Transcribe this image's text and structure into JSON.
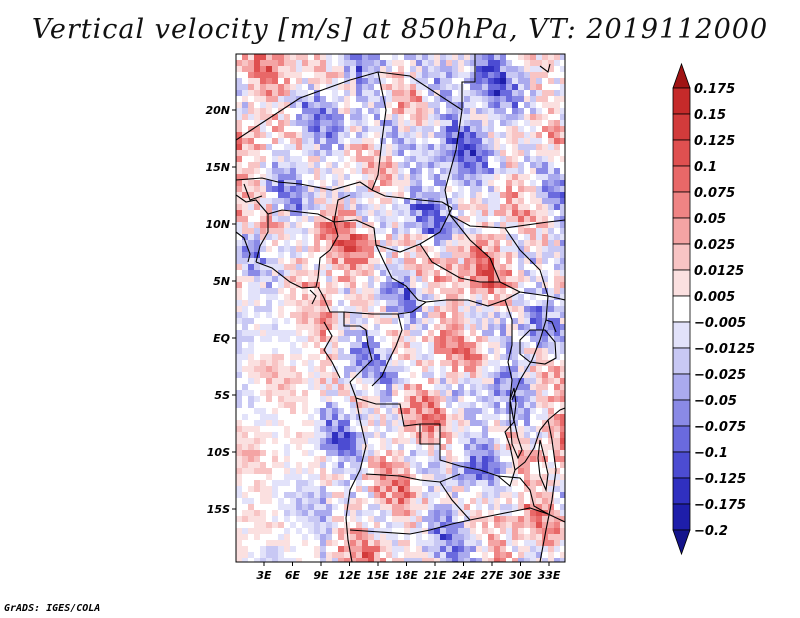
{
  "title": "Vertical velocity [m/s] at 850hPa, VT: 2019112000",
  "credit": "GrADS: IGES/COLA",
  "map": {
    "variable": "Vertical velocity",
    "units": "m/s",
    "level": "850hPa",
    "valid_time": "2019112000",
    "lon_ticks": [
      "3E",
      "6E",
      "9E",
      "12E",
      "15E",
      "18E",
      "21E",
      "24E",
      "27E",
      "30E",
      "33E"
    ],
    "lat_ticks": [
      "20N",
      "15N",
      "10N",
      "5N",
      "EQ",
      "5S",
      "10S",
      "15S"
    ]
  },
  "colorbar": {
    "levels": [
      "0.175",
      "0.15",
      "0.125",
      "0.1",
      "0.075",
      "0.05",
      "0.025",
      "0.0125",
      "0.005",
      "−0.005",
      "−0.0125",
      "−0.025",
      "−0.05",
      "−0.075",
      "−0.1",
      "−0.125",
      "−0.175",
      "−0.2"
    ],
    "colors": [
      "#b81c1c",
      "#c52a2a",
      "#d23b3b",
      "#df5050",
      "#e86868",
      "#ef8484",
      "#f4a4a4",
      "#f8c4c4",
      "#fbe0e0",
      "#ffffff",
      "#e2e2fa",
      "#c8c8f4",
      "#aaaaee",
      "#8a8ae6",
      "#6a6ade",
      "#4c4cd2",
      "#3030c0",
      "#1e1eaa",
      "#12129a"
    ],
    "top_arrow_color": "#a01414",
    "bottom_arrow_color": "#14148c"
  }
}
